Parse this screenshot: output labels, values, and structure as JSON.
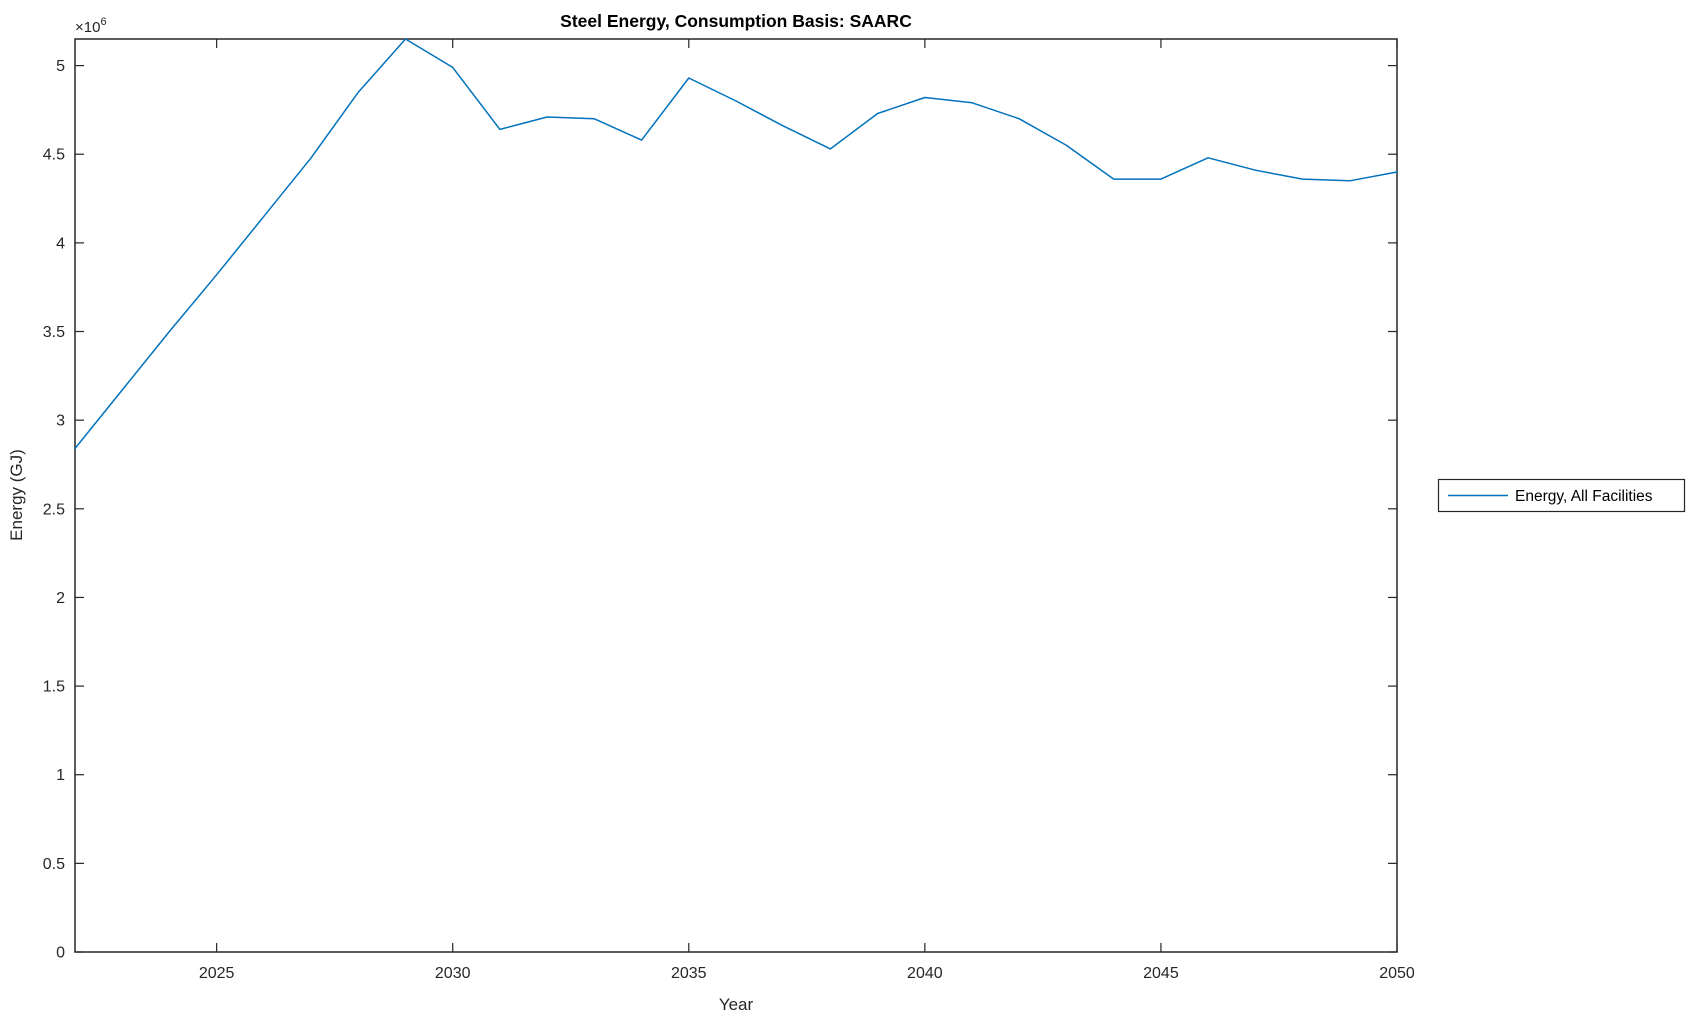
{
  "figure": {
    "title": "Steel Energy, Consumption Basis: SAARC",
    "xlabel": "Year",
    "ylabel": "Energy (GJ)",
    "y_multiplier": {
      "base": "×10",
      "exponent": "6"
    },
    "background_color": "#ffffff",
    "axis_color": "#262626"
  },
  "legend": {
    "position": "right-outside",
    "entries": [
      {
        "label": "Energy, All Facilities",
        "color": "#0072BD"
      }
    ]
  },
  "chart_data": {
    "type": "line",
    "title": "Steel Energy, Consumption Basis: SAARC",
    "xlabel": "Year",
    "ylabel": "Energy (GJ)",
    "y_unit_multiplier": 1000000,
    "xlim": [
      2022,
      2050
    ],
    "ylim": [
      0,
      5150000
    ],
    "xticks": [
      2025,
      2030,
      2035,
      2040,
      2045,
      2050
    ],
    "xtick_labels": [
      "2025",
      "2030",
      "2035",
      "2040",
      "2045",
      "2050"
    ],
    "yticks": [
      0,
      500000,
      1000000,
      1500000,
      2000000,
      2500000,
      3000000,
      3500000,
      4000000,
      4500000,
      5000000
    ],
    "ytick_labels": [
      "0",
      "0.5",
      "1",
      "1.5",
      "2",
      "2.5",
      "3",
      "3.5",
      "4",
      "4.5",
      "5"
    ],
    "grid": false,
    "legend_position": "right-outside",
    "x": [
      2022,
      2023,
      2024,
      2025,
      2026,
      2027,
      2028,
      2029,
      2030,
      2031,
      2032,
      2033,
      2034,
      2035,
      2036,
      2037,
      2038,
      2039,
      2040,
      2041,
      2042,
      2043,
      2044,
      2045,
      2046,
      2047,
      2048,
      2049,
      2050
    ],
    "series": [
      {
        "name": "Energy, All Facilities",
        "color": "#0072BD",
        "values": [
          2840000,
          3170000,
          3500000,
          3820000,
          4150000,
          4480000,
          4850000,
          5150000,
          4990000,
          4640000,
          4710000,
          4700000,
          4580000,
          4930000,
          4800000,
          4660000,
          4530000,
          4730000,
          4820000,
          4790000,
          4700000,
          4550000,
          4360000,
          4360000,
          4480000,
          4410000,
          4360000,
          4350000,
          4400000
        ]
      }
    ]
  }
}
